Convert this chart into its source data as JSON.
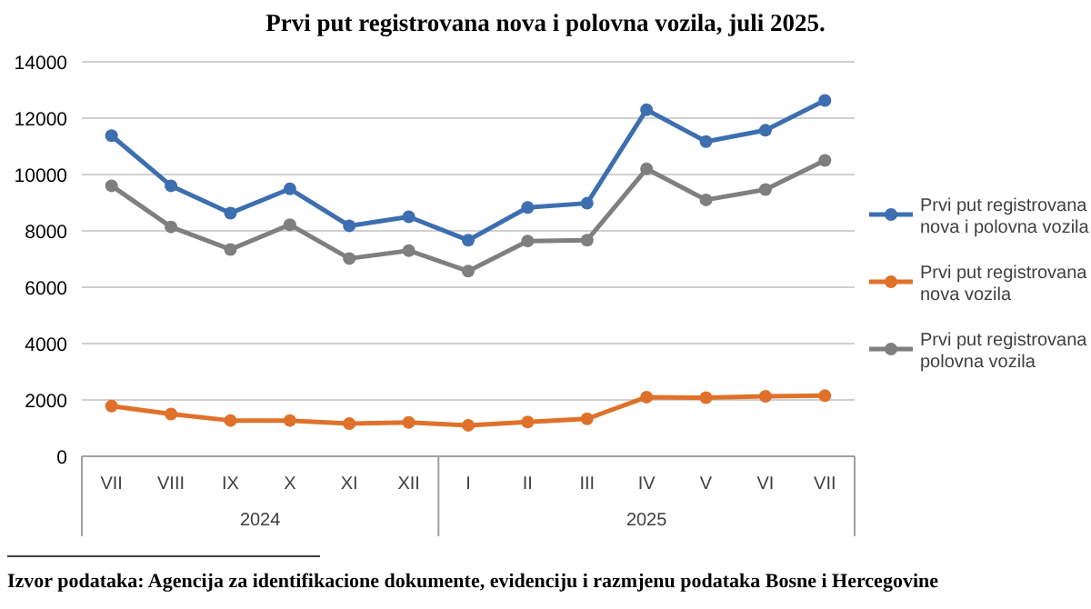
{
  "chart_data": {
    "type": "line",
    "title": "Prvi put registrovana nova i polovna vozila, juli 2025.",
    "categories": [
      "VII",
      "VIII",
      "IX",
      "X",
      "XI",
      "XII",
      "I",
      "II",
      "III",
      "IV",
      "V",
      "VI",
      "VII"
    ],
    "series": [
      {
        "name": "Prvi put registrovana nova i polovna vozila",
        "color": "#3d6eb0",
        "values": [
          11380,
          9600,
          8630,
          9490,
          8180,
          8500,
          7670,
          8830,
          8980,
          12300,
          11170,
          11570,
          12630
        ]
      },
      {
        "name": "Prvi put registrovana nova vozila",
        "color": "#e0712a",
        "values": [
          1780,
          1500,
          1270,
          1270,
          1160,
          1200,
          1100,
          1220,
          1330,
          2100,
          2080,
          2130,
          2150
        ]
      },
      {
        "name": "Prvi put registrovana polovna vozila",
        "color": "#7f7f7f",
        "values": [
          9600,
          8140,
          7340,
          8220,
          7020,
          7300,
          6570,
          7640,
          7670,
          10200,
          9100,
          9470,
          10500
        ]
      }
    ],
    "ylim": [
      0,
      14000
    ],
    "yticks": [
      0,
      2000,
      4000,
      6000,
      8000,
      10000,
      12000,
      14000
    ],
    "grid": "y",
    "legend": "right",
    "marker": "circle",
    "line_style": "solid",
    "annotations": [
      "2024",
      "2025",
      "Izvor podataka: Agencija za identifikacione dokumente, evidenciju i razmjenu podataka Bosne i Hercegovine"
    ]
  }
}
